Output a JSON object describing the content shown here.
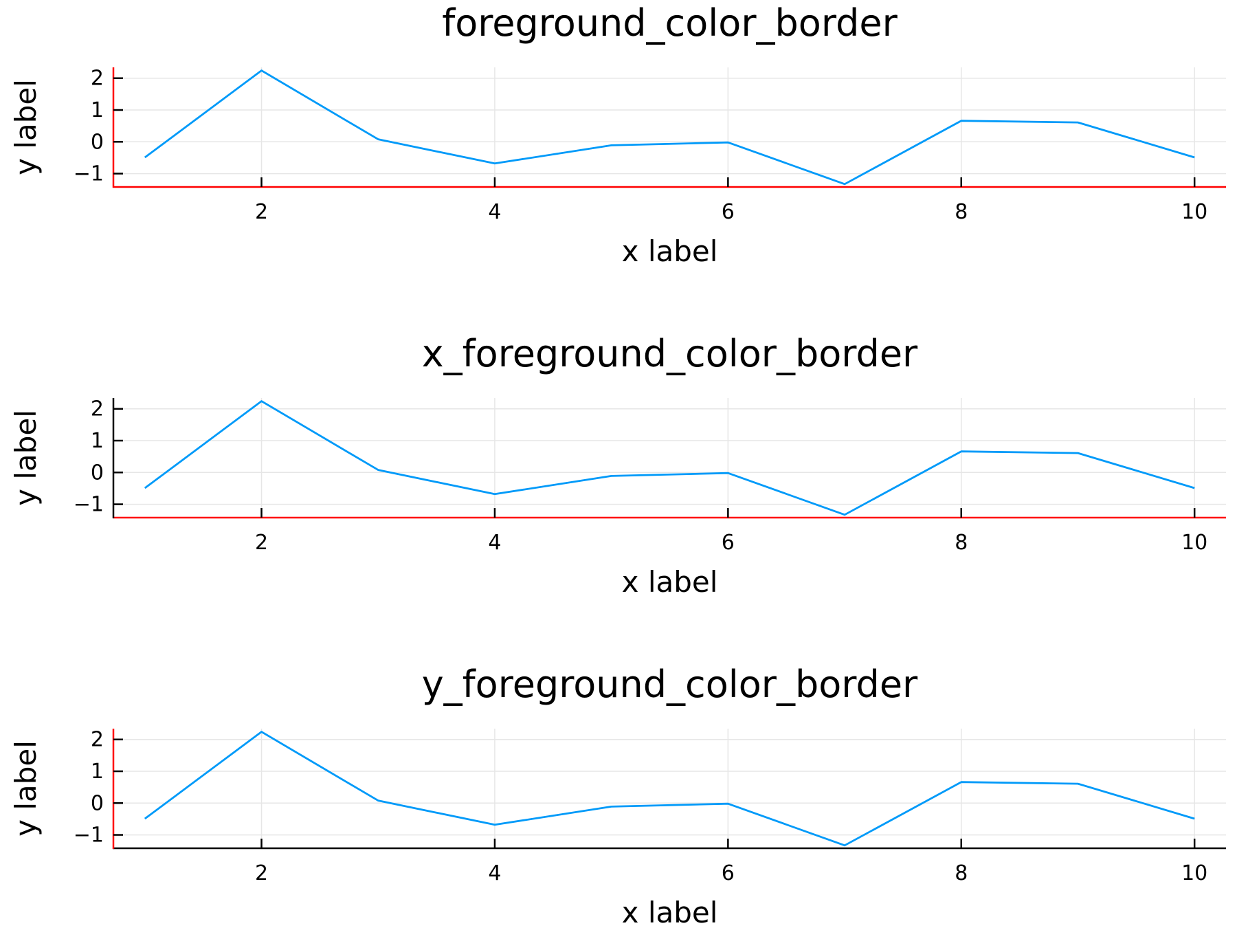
{
  "chart_data": [
    {
      "type": "line",
      "title": "foreground_color_border",
      "xlabel": "x label",
      "ylabel": "y label",
      "x": [
        1,
        2,
        3,
        4,
        5,
        6,
        7,
        8,
        9,
        10
      ],
      "series": [
        {
          "values": [
            -0.49,
            2.24,
            0.08,
            -0.68,
            -0.11,
            -0.02,
            -1.33,
            0.66,
            0.61,
            -0.49
          ]
        }
      ],
      "xlim": [
        0.73,
        10.27
      ],
      "ylim": [
        -1.42,
        2.34
      ],
      "xticks": [
        2,
        4,
        6,
        8,
        10
      ],
      "xtick_labels": [
        "2",
        "4",
        "6",
        "8",
        "10"
      ],
      "yticks": [
        -1,
        0,
        1,
        2
      ],
      "ytick_labels": [
        "−1",
        "0",
        "1",
        "2"
      ],
      "grid": true,
      "line_color": "#009af9",
      "x_axis_color": "#ff0000",
      "y_axis_color": "#ff0000"
    },
    {
      "type": "line",
      "title": "x_foreground_color_border",
      "xlabel": "x label",
      "ylabel": "y label",
      "x": [
        1,
        2,
        3,
        4,
        5,
        6,
        7,
        8,
        9,
        10
      ],
      "series": [
        {
          "values": [
            -0.49,
            2.24,
            0.08,
            -0.68,
            -0.11,
            -0.02,
            -1.33,
            0.66,
            0.61,
            -0.49
          ]
        }
      ],
      "xlim": [
        0.73,
        10.27
      ],
      "ylim": [
        -1.42,
        2.34
      ],
      "xticks": [
        2,
        4,
        6,
        8,
        10
      ],
      "xtick_labels": [
        "2",
        "4",
        "6",
        "8",
        "10"
      ],
      "yticks": [
        -1,
        0,
        1,
        2
      ],
      "ytick_labels": [
        "−1",
        "0",
        "1",
        "2"
      ],
      "grid": true,
      "line_color": "#009af9",
      "x_axis_color": "#ff0000",
      "y_axis_color": "#000000"
    },
    {
      "type": "line",
      "title": "y_foreground_color_border",
      "xlabel": "x label",
      "ylabel": "y label",
      "x": [
        1,
        2,
        3,
        4,
        5,
        6,
        7,
        8,
        9,
        10
      ],
      "series": [
        {
          "values": [
            -0.49,
            2.24,
            0.08,
            -0.68,
            -0.11,
            -0.02,
            -1.33,
            0.66,
            0.61,
            -0.49
          ]
        }
      ],
      "xlim": [
        0.73,
        10.27
      ],
      "ylim": [
        -1.42,
        2.34
      ],
      "xticks": [
        2,
        4,
        6,
        8,
        10
      ],
      "xtick_labels": [
        "2",
        "4",
        "6",
        "8",
        "10"
      ],
      "yticks": [
        -1,
        0,
        1,
        2
      ],
      "ytick_labels": [
        "−1",
        "0",
        "1",
        "2"
      ],
      "grid": true,
      "line_color": "#009af9",
      "x_axis_color": "#000000",
      "y_axis_color": "#ff0000"
    }
  ]
}
